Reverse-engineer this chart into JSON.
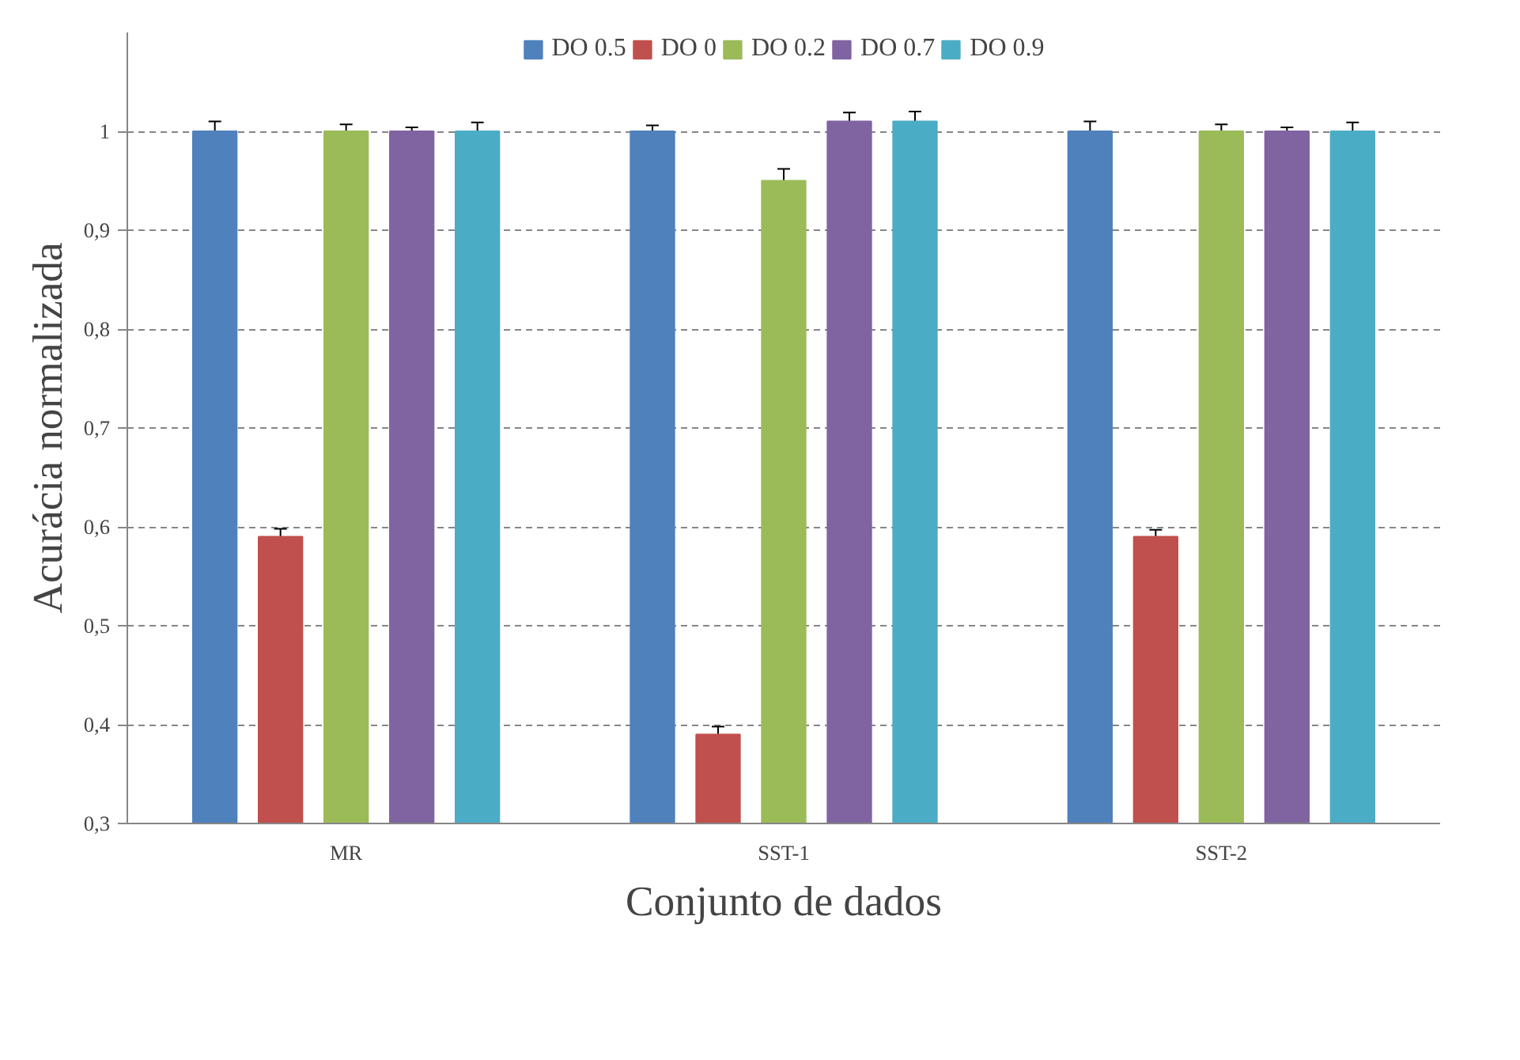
{
  "chart_data": {
    "type": "bar",
    "xlabel": "Conjunto de dados",
    "ylabel": "Acurácia normalizada",
    "categories": [
      "MR",
      "SST-1",
      "SST-2"
    ],
    "series": [
      {
        "name": "DO 0.5",
        "color": "#4f81bd",
        "values": [
          1.0,
          1.0,
          1.0
        ],
        "errors": [
          0.01,
          0.006,
          0.01
        ]
      },
      {
        "name": "DO 0",
        "color": "#c0504d",
        "values": [
          0.59,
          0.39,
          0.59
        ],
        "errors": [
          0.008,
          0.008,
          0.007
        ]
      },
      {
        "name": "DO 0.2",
        "color": "#9bbb59",
        "values": [
          1.0,
          0.95,
          1.0
        ],
        "errors": [
          0.007,
          0.012,
          0.007
        ]
      },
      {
        "name": "DO 0.7",
        "color": "#8064a2",
        "values": [
          1.0,
          1.01,
          1.0
        ],
        "errors": [
          0.004,
          0.009,
          0.004
        ]
      },
      {
        "name": "DO 0.9",
        "color": "#4bacc6",
        "values": [
          1.0,
          1.01,
          1.0
        ],
        "errors": [
          0.009,
          0.01,
          0.009
        ]
      }
    ],
    "ylim": [
      0.3,
      1.1
    ],
    "yticks": [
      {
        "value": 0.3,
        "label": "0,3"
      },
      {
        "value": 0.4,
        "label": "0,4"
      },
      {
        "value": 0.5,
        "label": "0,5"
      },
      {
        "value": 0.6,
        "label": "0,6"
      },
      {
        "value": 0.7,
        "label": "0,7"
      },
      {
        "value": 0.8,
        "label": "0,8"
      },
      {
        "value": 0.9,
        "label": "0,9"
      },
      1
    ],
    "grid": "y",
    "legend": "top"
  }
}
